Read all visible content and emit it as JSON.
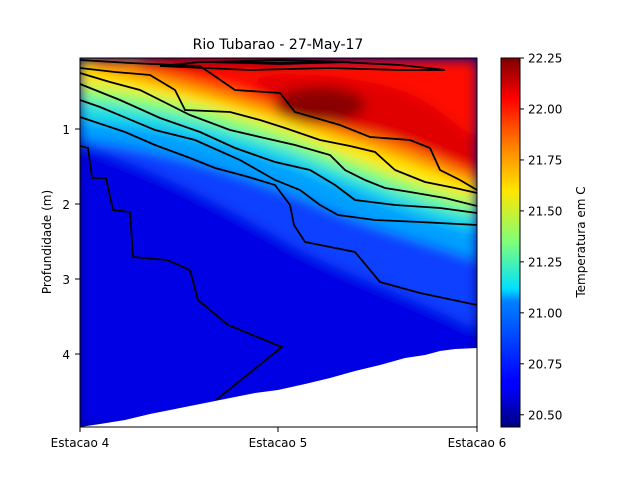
{
  "chart_data": {
    "type": "heatmap",
    "title": "Rio Tubarao - 27-May-17",
    "ylabel": "Profundidade (m)",
    "xlabel": "",
    "x_categories": [
      "Estacao 4",
      "Estacao 5",
      "Estacao 6"
    ],
    "y_ticks": [
      1,
      2,
      3,
      4
    ],
    "ylim": [
      0.05,
      4.95
    ],
    "y_inverted": true,
    "colorbar": {
      "label": "Temperatura em C",
      "colormap": "jet",
      "range": [
        20.44,
        22.25
      ],
      "ticks": [
        22.25,
        22.0,
        21.75,
        21.5,
        21.25,
        21.0,
        20.75,
        20.5
      ]
    },
    "max_depth_by_station": {
      "Estacao 4": 4.95,
      "Estacao 5": 4.55,
      "Estacao 6": 3.9
    },
    "contour_color": "#000000"
  }
}
